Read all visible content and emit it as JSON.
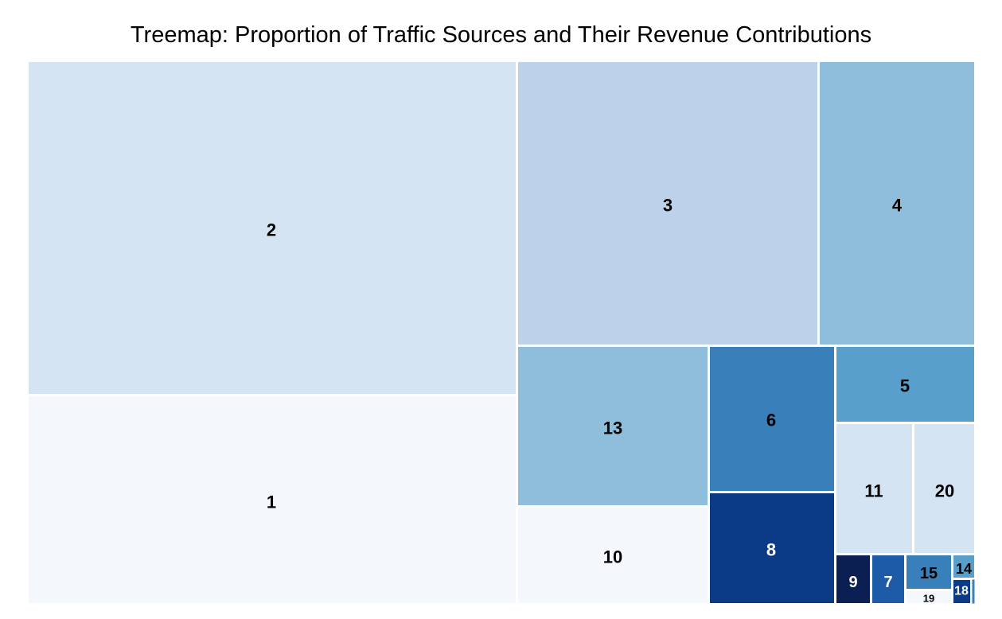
{
  "chart_data": {
    "type": "treemap",
    "title": "Treemap: Proportion of Traffic Sources and Their Revenue Contributions",
    "tiles": [
      {
        "label": "1",
        "color": "#f4f8fd"
      },
      {
        "label": "2",
        "color": "#d5e4f3"
      },
      {
        "label": "3",
        "color": "#bcd1ea"
      },
      {
        "label": "4",
        "color": "#8fbedc"
      },
      {
        "label": "5",
        "color": "#599fcc"
      },
      {
        "label": "6",
        "color": "#397fba"
      },
      {
        "label": "7",
        "color": "#1d5aa8"
      },
      {
        "label": "8",
        "color": "#0b3a87"
      },
      {
        "label": "9",
        "color": "#0b1f52"
      },
      {
        "label": "10",
        "color": "#f4f8fd"
      },
      {
        "label": "11",
        "color": "#d5e4f3"
      },
      {
        "label": "13",
        "color": "#8fbedc"
      },
      {
        "label": "14",
        "color": "#599fcc"
      },
      {
        "label": "15",
        "color": "#397fba"
      },
      {
        "label": "18",
        "color": "#0b3a87"
      },
      {
        "label": "19",
        "color": "#f4f8fd"
      },
      {
        "label": "20",
        "color": "#d5e4f3"
      }
    ]
  }
}
